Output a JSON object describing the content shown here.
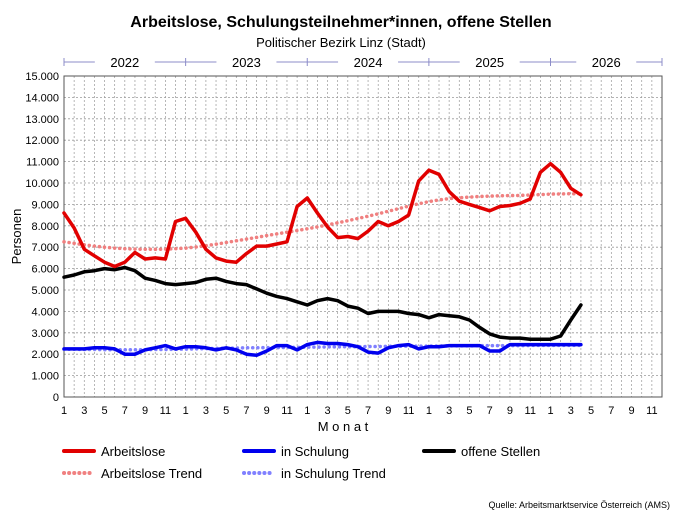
{
  "chart_data": {
    "type": "line",
    "title": "Arbeitslose, Schulungsteilnehmer*innen, offene Stellen",
    "subtitle": "Politischer Bezirk Linz (Stadt)",
    "xlabel": "M o n a t",
    "ylabel": "Personen",
    "source": "Quelle: Arbeitsmarktservice Österreich (AMS)",
    "ylim": [
      0,
      15000
    ],
    "yticks": [
      "0",
      "1.000",
      "2.000",
      "3.000",
      "4.000",
      "5.000",
      "6.000",
      "7.000",
      "8.000",
      "9.000",
      "10.000",
      "11.000",
      "12.000",
      "13.000",
      "14.000",
      "15.000"
    ],
    "years": [
      "2022",
      "2023",
      "2024",
      "2025",
      "2026"
    ],
    "x_month_labels": [
      "1",
      "3",
      "5",
      "7",
      "9",
      "11",
      "1",
      "3",
      "5",
      "7",
      "9",
      "11",
      "1",
      "3",
      "5",
      "7",
      "9",
      "11",
      "1",
      "3",
      "5",
      "7",
      "9",
      "11",
      "1",
      "3",
      "5",
      "7",
      "9",
      "11"
    ],
    "grid": true,
    "legend_position": "bottom",
    "colors": {
      "arbeitslose": "#e10000",
      "arbeitslose_trend": "#f08080",
      "schulung": "#0000ee",
      "schulung_trend": "#8080ff",
      "offene": "#000000",
      "year_band": "#8c8cc8"
    },
    "series": [
      {
        "name": "Arbeitslose",
        "key": "arbeitslose",
        "style": "solid",
        "values": [
          8600,
          7900,
          6900,
          6600,
          6300,
          6100,
          6300,
          6750,
          6450,
          6500,
          6450,
          8200,
          8350,
          7700,
          6900,
          6500,
          6350,
          6300,
          6700,
          7050,
          7050,
          7150,
          7250,
          8900,
          9300,
          8600,
          7950,
          7450,
          7500,
          7400,
          7750,
          8200,
          8000,
          8200,
          8500,
          10100,
          10600,
          10400,
          9600,
          9150,
          9000,
          8850,
          8700,
          8900,
          8950,
          9050,
          9250,
          10500,
          10900,
          10500,
          9750,
          9450
        ]
      },
      {
        "name": "in Schulung",
        "key": "schulung",
        "style": "solid",
        "values": [
          2250,
          2250,
          2250,
          2300,
          2300,
          2250,
          2000,
          2000,
          2200,
          2300,
          2400,
          2250,
          2350,
          2350,
          2300,
          2200,
          2300,
          2200,
          2000,
          1950,
          2150,
          2400,
          2400,
          2200,
          2450,
          2550,
          2500,
          2500,
          2450,
          2350,
          2100,
          2050,
          2300,
          2400,
          2450,
          2250,
          2350,
          2350,
          2400,
          2400,
          2400,
          2400,
          2150,
          2150,
          2450,
          2450,
          2450,
          2450,
          2450,
          2450,
          2450,
          2450
        ]
      },
      {
        "name": "offene Stellen",
        "key": "offene",
        "style": "solid",
        "values": [
          5600,
          5700,
          5850,
          5900,
          6000,
          5950,
          6050,
          5900,
          5550,
          5450,
          5300,
          5250,
          5300,
          5350,
          5500,
          5550,
          5400,
          5300,
          5250,
          5050,
          4850,
          4700,
          4600,
          4450,
          4300,
          4500,
          4600,
          4500,
          4250,
          4150,
          3900,
          4000,
          4000,
          4000,
          3900,
          3850,
          3700,
          3850,
          3800,
          3750,
          3600,
          3250,
          2950,
          2800,
          2750,
          2750,
          2700,
          2700,
          2700,
          2850,
          3600,
          4300
        ]
      },
      {
        "name": "Arbeitslose Trend",
        "key": "arbeitslose_trend",
        "style": "dotted",
        "values": [
          7250,
          7180,
          7110,
          7050,
          7000,
          6960,
          6930,
          6910,
          6900,
          6900,
          6910,
          6930,
          6960,
          7010,
          7070,
          7140,
          7220,
          7300,
          7380,
          7460,
          7540,
          7620,
          7700,
          7780,
          7860,
          7950,
          8040,
          8140,
          8240,
          8340,
          8450,
          8560,
          8680,
          8800,
          8920,
          9030,
          9130,
          9210,
          9270,
          9310,
          9340,
          9370,
          9390,
          9400,
          9410,
          9420,
          9440,
          9460,
          9480,
          9490,
          9500,
          9500
        ]
      },
      {
        "name": "in Schulung Trend",
        "key": "schulung_trend",
        "style": "dotted",
        "values": [
          2230,
          2230,
          2220,
          2220,
          2210,
          2210,
          2210,
          2210,
          2210,
          2220,
          2220,
          2230,
          2240,
          2250,
          2260,
          2270,
          2280,
          2290,
          2300,
          2300,
          2310,
          2310,
          2320,
          2320,
          2330,
          2330,
          2340,
          2340,
          2350,
          2350,
          2360,
          2360,
          2370,
          2370,
          2380,
          2380,
          2380,
          2390,
          2390,
          2390,
          2390,
          2400,
          2400,
          2400,
          2400,
          2400,
          2410,
          2410,
          2410,
          2410,
          2410,
          2410
        ]
      }
    ]
  }
}
